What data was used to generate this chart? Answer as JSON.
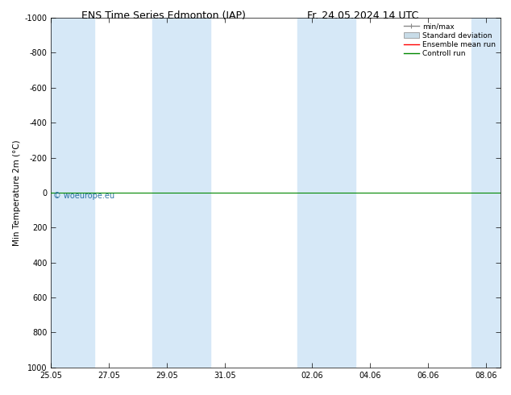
{
  "title_left": "ENS Time Series Edmonton (IAP)",
  "title_right": "Fr. 24.05.2024 14 UTC",
  "ylabel": "Min Temperature 2m (°C)",
  "ylim_bottom": 1000,
  "ylim_top": -1000,
  "yticks": [
    -1000,
    -800,
    -600,
    -400,
    -200,
    0,
    200,
    400,
    600,
    800,
    1000
  ],
  "xtick_labels": [
    "25.05",
    "27.05",
    "29.05",
    "31.05",
    "02.06",
    "04.06",
    "06.06",
    "08.06"
  ],
  "xtick_positions": [
    0,
    2,
    4,
    6,
    9,
    11,
    13,
    15
  ],
  "shaded_bands": [
    [
      0.0,
      1.5
    ],
    [
      3.5,
      5.5
    ],
    [
      8.5,
      10.5
    ],
    [
      14.5,
      15.5
    ]
  ],
  "band_color": "#d6e8f7",
  "green_line_y": 0,
  "red_line_y": 0,
  "ensemble_mean_color": "#ff0000",
  "control_run_color": "#008800",
  "watermark": "© woeurope.eu",
  "background_color": "#ffffff",
  "legend_entries": [
    "min/max",
    "Standard deviation",
    "Ensemble mean run",
    "Controll run"
  ],
  "title_fontsize": 9,
  "axis_label_fontsize": 7.5,
  "tick_fontsize": 7,
  "x_min": 0,
  "x_max": 15.5
}
